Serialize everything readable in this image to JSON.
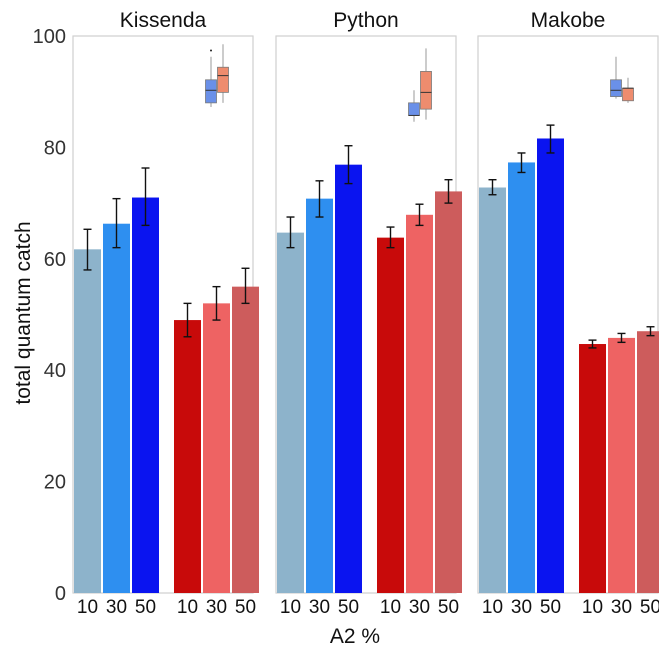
{
  "chart_data": {
    "type": "bar",
    "xlabel": "A2 %",
    "ylabel": "total quantum catch",
    "ylim": [
      0,
      100
    ],
    "yticks": [
      0,
      20,
      40,
      60,
      80,
      100
    ],
    "categories": [
      "10",
      "30",
      "50",
      "10",
      "30",
      "50"
    ],
    "grid": false,
    "colors": [
      "#8db3cb",
      "#2e8ff0",
      "#0a14f0",
      "#c80a0a",
      "#ee6363",
      "#cd5c5c"
    ],
    "inset_colors": [
      "#6a90e8",
      "#ee8c6e"
    ],
    "panels": [
      {
        "title": "Kissenda",
        "values": [
          61.7,
          66.3,
          71.0,
          49.0,
          52.0,
          55.0
        ],
        "error_low": [
          58.0,
          62.0,
          66.0,
          46.0,
          49.0,
          52.0
        ],
        "error_high": [
          65.3,
          70.8,
          76.3,
          52.0,
          55.0,
          58.3
        ],
        "inset": {
          "type": "boxplot",
          "boxes": [
            {
              "whisker_low": 83.0,
              "q1": 84.0,
              "median": 87.0,
              "q3": 89.5,
              "whisker_high": 95.0,
              "outliers": [
                96.5
              ]
            },
            {
              "whisker_low": 84.0,
              "q1": 86.5,
              "median": 90.5,
              "q3": 92.5,
              "whisker_high": 98.0,
              "outliers": []
            }
          ]
        }
      },
      {
        "title": "Python",
        "values": [
          64.7,
          70.8,
          76.9,
          63.8,
          67.9,
          72.1
        ],
        "error_low": [
          62.0,
          67.5,
          73.5,
          62.0,
          66.0,
          70.0
        ],
        "error_high": [
          67.5,
          74.0,
          80.3,
          65.7,
          69.8,
          74.2
        ],
        "inset": {
          "type": "boxplot",
          "boxes": [
            {
              "whisker_low": 79.5,
              "q1": 81.0,
              "median": 81.0,
              "q3": 84.0,
              "whisker_high": 87.0,
              "outliers": []
            },
            {
              "whisker_low": 80.0,
              "q1": 82.5,
              "median": 86.5,
              "q3": 91.5,
              "whisker_high": 97.0,
              "outliers": []
            }
          ]
        }
      },
      {
        "title": "Makobe",
        "values": [
          72.8,
          77.3,
          81.6,
          44.7,
          45.8,
          47.0
        ],
        "error_low": [
          71.5,
          75.5,
          79.0,
          44.0,
          45.0,
          46.2
        ],
        "error_high": [
          74.2,
          79.0,
          84.0,
          45.4,
          46.6,
          47.8
        ],
        "inset": {
          "type": "boxplot",
          "boxes": [
            {
              "whisker_low": 85.0,
              "q1": 85.5,
              "median": 87.0,
              "q3": 89.5,
              "whisker_high": 95.0,
              "outliers": []
            },
            {
              "whisker_low": 84.0,
              "q1": 84.5,
              "median": 87.5,
              "q3": 87.5,
              "whisker_high": 90.0,
              "outliers": []
            }
          ]
        }
      }
    ]
  }
}
